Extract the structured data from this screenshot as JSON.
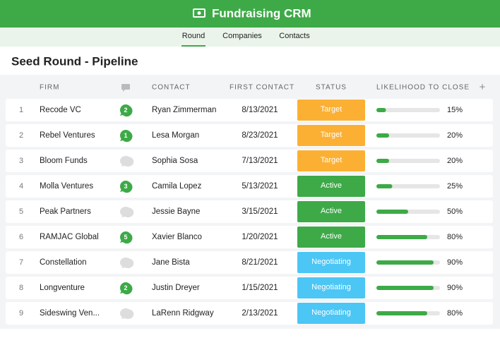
{
  "app": {
    "title": "Fundraising CRM"
  },
  "nav": {
    "tabs": [
      "Round",
      "Companies",
      "Contacts"
    ],
    "active": 0
  },
  "page": {
    "title": "Seed Round - Pipeline"
  },
  "table": {
    "columns": {
      "firm": "FIRM",
      "contact": "CONTACT",
      "first_contact": "FIRST CONTACT",
      "status": "STATUS",
      "likelihood": "LIKELIHOOD TO CLOSE",
      "add": "+"
    },
    "status_colors": {
      "Target": "#fbb034",
      "Active": "#3daa47",
      "Negotiating": "#4cc6f5"
    },
    "rows": [
      {
        "num": 1,
        "firm": "Recode VC",
        "comments": 2,
        "contact": "Ryan Zimmerman",
        "first_contact": "8/13/2021",
        "status": "Target",
        "likelihood": 15,
        "likelihood_label": "15%"
      },
      {
        "num": 2,
        "firm": "Rebel Ventures",
        "comments": 1,
        "contact": "Lesa Morgan",
        "first_contact": "8/23/2021",
        "status": "Target",
        "likelihood": 20,
        "likelihood_label": "20%"
      },
      {
        "num": 3,
        "firm": "Bloom Funds",
        "comments": null,
        "contact": "Sophia Sosa",
        "first_contact": "7/13/2021",
        "status": "Target",
        "likelihood": 20,
        "likelihood_label": "20%"
      },
      {
        "num": 4,
        "firm": "Molla Ventures",
        "comments": 3,
        "contact": "Camila Lopez",
        "first_contact": "5/13/2021",
        "status": "Active",
        "likelihood": 25,
        "likelihood_label": "25%"
      },
      {
        "num": 5,
        "firm": "Peak Partners",
        "comments": null,
        "contact": "Jessie Bayne",
        "first_contact": "3/15/2021",
        "status": "Active",
        "likelihood": 50,
        "likelihood_label": "50%"
      },
      {
        "num": 6,
        "firm": "RAMJAC Global",
        "comments": 5,
        "contact": "Xavier Blanco",
        "first_contact": "1/20/2021",
        "status": "Active",
        "likelihood": 80,
        "likelihood_label": "80%"
      },
      {
        "num": 7,
        "firm": "Constellation",
        "comments": null,
        "contact": "Jane Bista",
        "first_contact": "8/21/2021",
        "status": "Negotiating",
        "likelihood": 90,
        "likelihood_label": "90%"
      },
      {
        "num": 8,
        "firm": "Longventure",
        "comments": 2,
        "contact": "Justin Dreyer",
        "first_contact": "1/15/2021",
        "status": "Negotiating",
        "likelihood": 90,
        "likelihood_label": "90%"
      },
      {
        "num": 9,
        "firm": "Sideswing Ven...",
        "comments": null,
        "contact": "LaRenn Ridgway",
        "first_contact": "2/13/2021",
        "status": "Negotiating",
        "likelihood": 80,
        "likelihood_label": "80%"
      }
    ]
  }
}
